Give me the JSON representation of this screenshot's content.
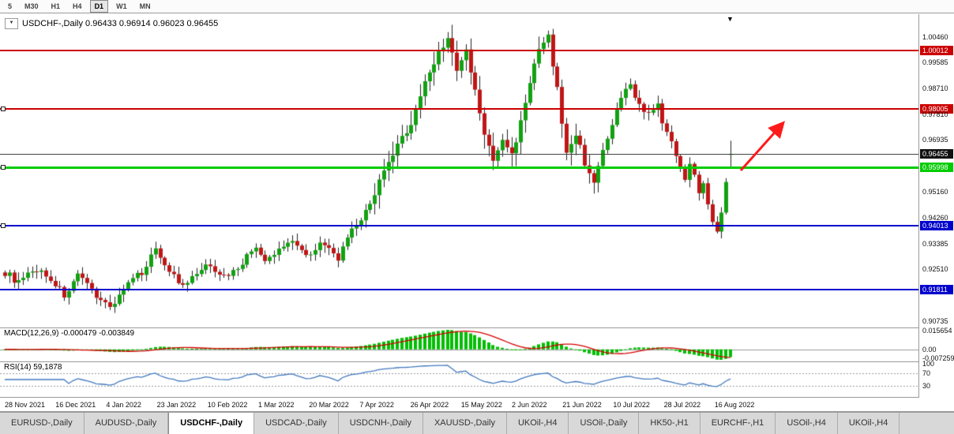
{
  "toolbar": {
    "timeframes": [
      {
        "label": "5",
        "selected": false
      },
      {
        "label": "M30",
        "selected": false
      },
      {
        "label": "H1",
        "selected": false
      },
      {
        "label": "H4",
        "selected": false
      },
      {
        "label": "D1",
        "selected": true
      },
      {
        "label": "W1",
        "selected": false
      },
      {
        "label": "MN",
        "selected": false
      }
    ]
  },
  "chart": {
    "title_line": "USDCHF-,Daily  0.96433 0.96914 0.96023 0.96455",
    "symbol_dropdown_glyph": "▼",
    "last_bar_marker_glyph": "▼"
  },
  "chart_data": {
    "type": "candlestick",
    "symbol": "USDCHF-",
    "timeframe": "Daily",
    "current_ohlc": {
      "open": 0.96433,
      "high": 0.96914,
      "low": 0.96023,
      "close": 0.96455
    },
    "candle_count": 160,
    "close_path_anchors": [
      [
        0,
        0.924
      ],
      [
        3,
        0.9205
      ],
      [
        7,
        0.9252
      ],
      [
        10,
        0.9218
      ],
      [
        13,
        0.9162
      ],
      [
        16,
        0.9225
      ],
      [
        19,
        0.918
      ],
      [
        23,
        0.912
      ],
      [
        26,
        0.9185
      ],
      [
        30,
        0.9242
      ],
      [
        33,
        0.9322
      ],
      [
        36,
        0.9248
      ],
      [
        39,
        0.9188
      ],
      [
        42,
        0.9235
      ],
      [
        45,
        0.9268
      ],
      [
        48,
        0.9224
      ],
      [
        51,
        0.9258
      ],
      [
        55,
        0.933
      ],
      [
        57,
        0.9272
      ],
      [
        60,
        0.9318
      ],
      [
        63,
        0.9356
      ],
      [
        66,
        0.9298
      ],
      [
        69,
        0.934
      ],
      [
        73,
        0.929
      ],
      [
        76,
        0.938
      ],
      [
        79,
        0.9445
      ],
      [
        82,
        0.955
      ],
      [
        86,
        0.9672
      ],
      [
        89,
        0.9752
      ],
      [
        92,
        0.989
      ],
      [
        95,
        0.9995
      ],
      [
        97,
        1.0042
      ],
      [
        99,
        0.9928
      ],
      [
        101,
        0.9998
      ],
      [
        103,
        0.9858
      ],
      [
        105,
        0.9715
      ],
      [
        107,
        0.9618
      ],
      [
        109,
        0.9698
      ],
      [
        111,
        0.964
      ],
      [
        113,
        0.9755
      ],
      [
        115,
        0.9895
      ],
      [
        117,
        0.9998
      ],
      [
        119,
        1.0046
      ],
      [
        121,
        0.9865
      ],
      [
        123,
        0.9645
      ],
      [
        125,
        0.9718
      ],
      [
        127,
        0.9615
      ],
      [
        129,
        0.9556
      ],
      [
        131,
        0.9648
      ],
      [
        133,
        0.974
      ],
      [
        135,
        0.9838
      ],
      [
        137,
        0.9882
      ],
      [
        139,
        0.9815
      ],
      [
        141,
        0.9778
      ],
      [
        143,
        0.9808
      ],
      [
        145,
        0.9715
      ],
      [
        147,
        0.9645
      ],
      [
        148,
        0.96
      ],
      [
        149,
        0.956
      ],
      [
        150,
        0.9612
      ],
      [
        151,
        0.9572
      ],
      [
        152,
        0.9515
      ],
      [
        153,
        0.9548
      ],
      [
        154,
        0.9478
      ],
      [
        155,
        0.9418
      ],
      [
        156,
        0.9376
      ],
      [
        157,
        0.9448
      ],
      [
        158,
        0.9552
      ],
      [
        159,
        0.96455
      ]
    ],
    "y_axis_ticks": [
      "1.00460",
      "0.99585",
      "0.98710",
      "0.97810",
      "0.96935",
      "0.95160",
      "0.94260",
      "0.93385",
      "0.92510",
      "0.90735"
    ],
    "horizontal_lines": [
      {
        "price": 1.00012,
        "label": "1.00012",
        "color": "#cc0000",
        "thickness": 2,
        "handles": false
      },
      {
        "price": 0.98005,
        "label": "0.98005",
        "color": "#cc0000",
        "thickness": 2,
        "handles": true
      },
      {
        "price": 0.96455,
        "label": "0.96455",
        "color": "#444444",
        "thickness": 1,
        "handles": false,
        "label_bg": "#111111"
      },
      {
        "price": 0.95998,
        "label": "0.95998",
        "color": "#00cc00",
        "thickness": 3,
        "handles": true
      },
      {
        "price": 0.94013,
        "label": "0.94013",
        "color": "#0000cc",
        "thickness": 2,
        "handles": true
      },
      {
        "price": 0.91811,
        "label": "0.91811",
        "color": "#0000cc",
        "thickness": 2,
        "handles": false
      }
    ],
    "x_axis_dates": [
      "28 Nov 2021",
      "16 Dec 2021",
      "4 Jan 2022",
      "23 Jan 2022",
      "10 Feb 2022",
      "1 Mar 2022",
      "20 Mar 2022",
      "7 Apr 2022",
      "26 Apr 2022",
      "15 May 2022",
      "2 Jun 2022",
      "21 Jun 2022",
      "10 Jul 2022",
      "28 Jul 2022",
      "16 Aug 2022"
    ],
    "annotation_arrow": {
      "color": "#ff1a1a",
      "direction": "up-right"
    },
    "indicators": {
      "macd": {
        "label": "MACD(12,26,9) -0.000479 -0.003849",
        "fast": 12,
        "slow": 26,
        "signal": 9,
        "value": -0.000479,
        "signal_value": -0.003849,
        "axis_labels": [
          "0.015654",
          "0.00",
          "-0.007259"
        ],
        "histogram_color": "#00be00",
        "signal_color": "#d40000"
      },
      "rsi": {
        "label": "RSI(14) 59,1878",
        "period": 14,
        "value": 59.1878,
        "axis_labels": [
          "100",
          "70",
          "30"
        ],
        "levels": [
          70,
          30
        ],
        "line_color": "#4178be"
      }
    },
    "candle_up_color": "#12a112",
    "candle_down_color": "#c01616",
    "wick_color": "#222222"
  },
  "tabs": [
    {
      "label": "EURUSD-,Daily",
      "selected": false
    },
    {
      "label": "AUDUSD-,Daily",
      "selected": false
    },
    {
      "label": "USDCHF-,Daily",
      "selected": true
    },
    {
      "label": "USDCAD-,Daily",
      "selected": false
    },
    {
      "label": "USDCNH-,Daily",
      "selected": false
    },
    {
      "label": "XAUUSD-,Daily",
      "selected": false
    },
    {
      "label": "UKOil-,H4",
      "selected": false
    },
    {
      "label": "USOil-,Daily",
      "selected": false
    },
    {
      "label": "HK50-,H1",
      "selected": false
    },
    {
      "label": "EURCHF-,H1",
      "selected": false
    },
    {
      "label": "USOil-,H4",
      "selected": false
    },
    {
      "label": "UKOil-,H4",
      "selected": false
    }
  ]
}
